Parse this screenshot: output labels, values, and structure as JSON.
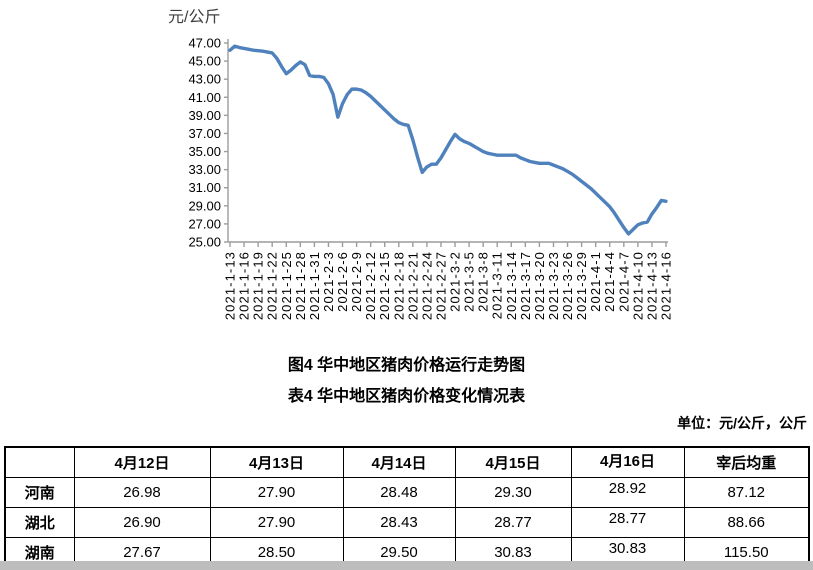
{
  "titles": {
    "figure": "图4 华中地区猪肉价格运行走势图",
    "table": "表4 华中地区猪肉价格变化情况表",
    "unit_note": "单位：元/公斤，公斤"
  },
  "chart_data": {
    "type": "line",
    "title": "图4 华中地区猪肉价格运行走势图",
    "y_axis_title": "元/公斤",
    "ylim": [
      25,
      47
    ],
    "y_tick_step": 2,
    "grid": false,
    "legend_position": "none",
    "line_color": "#4F81BD",
    "axis_color": "#9c9c9c",
    "x_label_every_n_points": 3,
    "x_tick_labels": [
      "2021-1-13",
      "2021-1-16",
      "2021-1-19",
      "2021-1-22",
      "2021-1-25",
      "2021-1-28",
      "2021-1-31",
      "2021-2-3",
      "2021-2-6",
      "2021-2-9",
      "2021-2-12",
      "2021-2-15",
      "2021-2-18",
      "2021-2-21",
      "2021-2-24",
      "2021-2-27",
      "2021-3-2",
      "2021-3-5",
      "2021-3-8",
      "2021-3-11",
      "2021-3-14",
      "2021-3-17",
      "2021-3-20",
      "2021-3-23",
      "2021-3-26",
      "2021-3-29",
      "2021-4-1",
      "2021-4-4",
      "2021-4-7",
      "2021-4-10",
      "2021-4-13",
      "2021-4-16"
    ],
    "values": [
      46.2,
      46.65,
      46.5,
      46.4,
      46.3,
      46.2,
      46.15,
      46.1,
      46.0,
      45.9,
      45.3,
      44.4,
      43.6,
      44.0,
      44.5,
      44.9,
      44.6,
      43.4,
      43.3,
      43.3,
      43.2,
      42.5,
      41.3,
      38.8,
      40.3,
      41.3,
      41.9,
      41.9,
      41.8,
      41.5,
      41.1,
      40.6,
      40.1,
      39.6,
      39.1,
      38.6,
      38.2,
      38.0,
      37.9,
      36.3,
      34.4,
      32.7,
      33.3,
      33.6,
      33.6,
      34.3,
      35.2,
      36.1,
      36.9,
      36.4,
      36.1,
      35.9,
      35.6,
      35.3,
      35.0,
      34.8,
      34.7,
      34.6,
      34.6,
      34.6,
      34.6,
      34.6,
      34.3,
      34.1,
      33.9,
      33.8,
      33.7,
      33.7,
      33.7,
      33.5,
      33.3,
      33.1,
      32.8,
      32.5,
      32.1,
      31.7,
      31.3,
      30.9,
      30.4,
      29.9,
      29.4,
      28.9,
      28.2,
      27.4,
      26.6,
      25.9,
      26.4,
      26.9,
      27.1,
      27.2,
      28.1,
      28.8,
      29.6,
      29.5
    ]
  },
  "table": {
    "headers": [
      "",
      "4月12日",
      "4月13日",
      "4月14日",
      "4月15日",
      "4月16日",
      "宰后均重"
    ],
    "rows": [
      {
        "label": "河南",
        "values": [
          "26.98",
          "27.90",
          "28.48",
          "29.30",
          "28.92",
          "87.12"
        ]
      },
      {
        "label": "湖北",
        "values": [
          "26.90",
          "27.90",
          "28.43",
          "28.77",
          "28.77",
          "88.66"
        ]
      },
      {
        "label": "湖南",
        "values": [
          "27.67",
          "28.50",
          "29.50",
          "30.83",
          "30.83",
          "115.50"
        ]
      }
    ]
  }
}
